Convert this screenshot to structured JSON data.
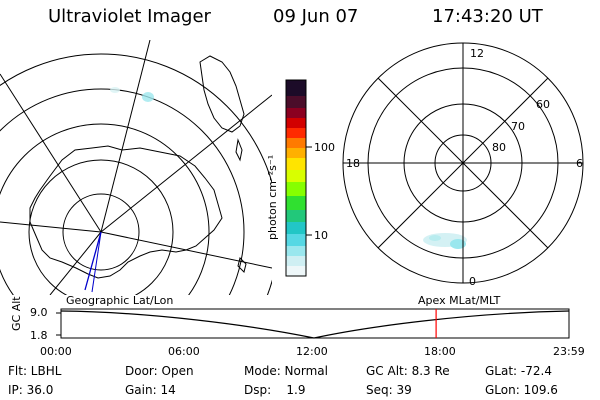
{
  "header": {
    "instrument": "Ultraviolet Imager",
    "date": "09 Jun 07",
    "time": "17:43:20 UT"
  },
  "colorbar": {
    "label": "photon cm⁻²s⁻¹",
    "tick_high": "100",
    "tick_low": "10"
  },
  "polar_plot": {
    "mlt_top": "12",
    "mlt_left": "18",
    "mlt_right": "6",
    "mlt_bottom": "0",
    "lat_60": "60",
    "lat_70": "70",
    "lat_80": "80"
  },
  "map_labels": {
    "left": "Geographic Lat/Lon",
    "right": "Apex MLat/MLT"
  },
  "altitude_plot": {
    "ylabel": "GC Alt",
    "ytick_high": "9.0",
    "ytick_low": "1.8",
    "xticks": [
      "00:00",
      "06:00",
      "12:00",
      "18:00",
      "23:59"
    ],
    "current_time_fraction": 0.7384
  },
  "info": {
    "flt": "Flt: LBHL",
    "door": "Door: Open",
    "mode": "Mode: Normal",
    "gc_alt": "GC Alt: 8.3 Re",
    "glat": "GLat: -72.4",
    "ip": "IP: 36.0",
    "gain": "Gain: 14",
    "dsp": "Dsp:    1.9",
    "seq": "Seq: 39",
    "glon": "GLon: 109.6"
  },
  "colors": {
    "current_time_marker": "#ff0000",
    "trajectory": "#0000cc"
  }
}
